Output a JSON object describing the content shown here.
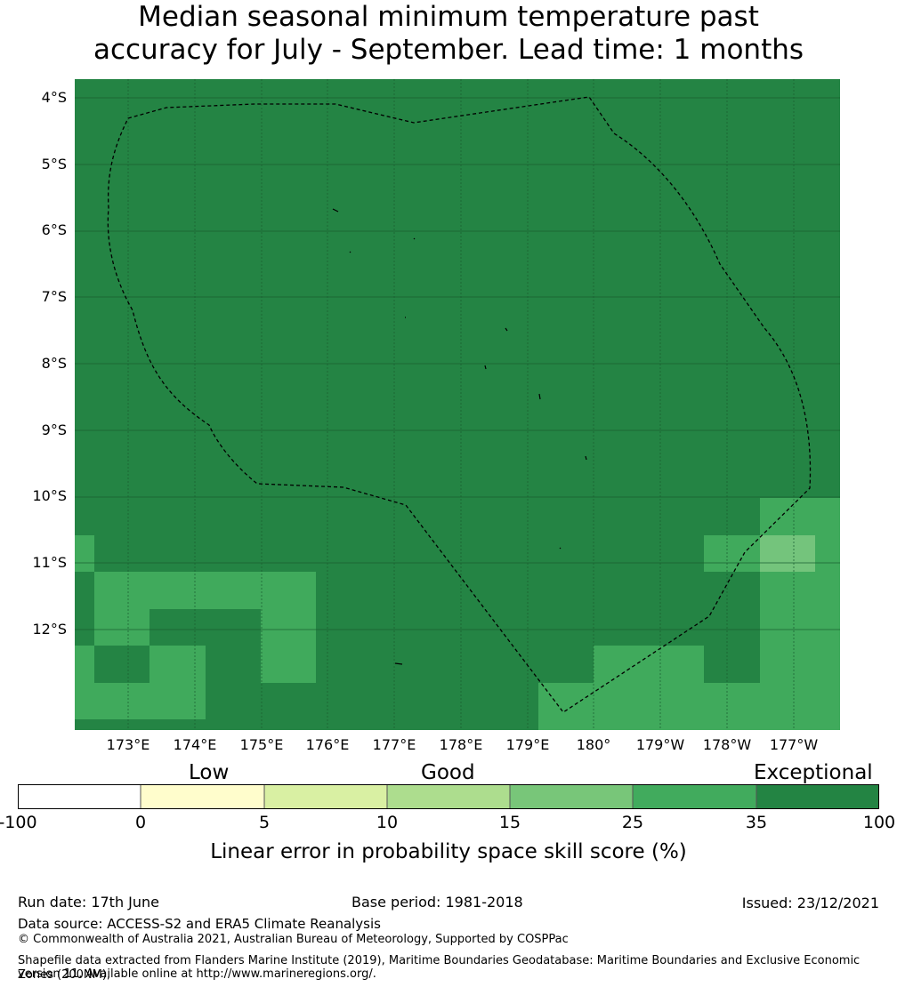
{
  "title": {
    "line1": "Median seasonal minimum temperature past",
    "line2": "accuracy for July - September. Lead time: 1 months"
  },
  "map": {
    "latitude_labels": [
      "4°S",
      "5°S",
      "6°S",
      "7°S",
      "8°S",
      "9°S",
      "10°S",
      "11°S",
      "12°S"
    ],
    "longitude_labels": [
      "173°E",
      "174°E",
      "175°E",
      "176°E",
      "177°E",
      "178°E",
      "179°E",
      "180°",
      "179°W",
      "178°W",
      "177°W"
    ],
    "base_color": "#248444",
    "boundary_style": "dashed",
    "colors": {
      "exceptional": "#248444",
      "good_25_35": "#40aa5c",
      "good_15_25": "#74c47c"
    }
  },
  "legend": {
    "categories": {
      "low": "Low",
      "good": "Good",
      "exceptional": "Exceptional"
    },
    "ticks": [
      "-100",
      "0",
      "5",
      "10",
      "15",
      "25",
      "35",
      "100"
    ],
    "colors": [
      "#ffffff",
      "#fffdcc",
      "#d9f0a3",
      "#addd8e",
      "#78c679",
      "#41ab5d",
      "#238443"
    ],
    "label": "Linear error in probability space skill score (%)"
  },
  "footer": {
    "run_date": "Run date: 17th June",
    "base_period": "Base period: 1981-2018",
    "issued": "Issued: 23/12/2021",
    "data_source": "Data source: ACCESS-S2 and ERA5 Climate Reanalysis",
    "copyright": "© Commonwealth of Australia 2021, Australian Bureau of Meteorology, Supported by COSPPac",
    "shapefile_line1": "Shapefile data extracted from Flanders Marine Institute (2019), Maritime Boundaries Geodatabase: Maritime Boundaries and Exclusive Economic Zones (200NM),",
    "shapefile_line2": "version 11. Available online at http://www.marineregions.org/."
  }
}
